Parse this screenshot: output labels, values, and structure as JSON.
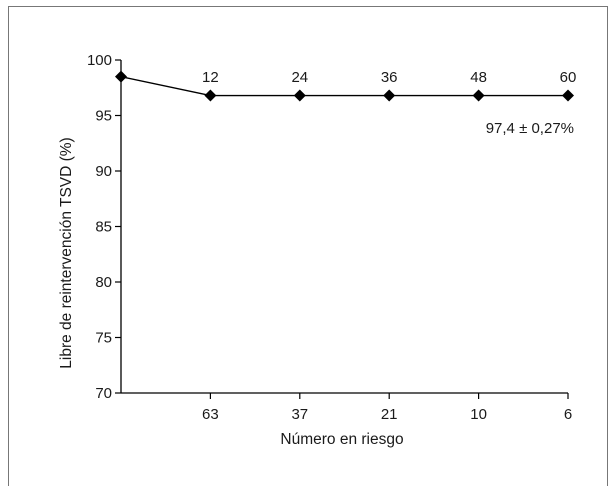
{
  "chart_data": {
    "type": "line",
    "title": "",
    "ylabel": "Libre de reintervención TSVD (%)",
    "xlabel": "Número en riesgo",
    "ylim": [
      70,
      100
    ],
    "xlim": [
      0,
      60
    ],
    "grid": false,
    "y_ticks": [
      "70",
      "75",
      "80",
      "85",
      "90",
      "95",
      "100"
    ],
    "x_top_tick_labels": [
      "12",
      "24",
      "36",
      "48",
      "60"
    ],
    "x_bottom_tick_labels": [
      "63",
      "37",
      "21",
      "10",
      "6"
    ],
    "series": [
      {
        "points": [
          {
            "x": 0,
            "y": 98.5
          },
          {
            "x": 12,
            "y": 96.8
          },
          {
            "x": 24,
            "y": 96.8
          },
          {
            "x": 36,
            "y": 96.8
          },
          {
            "x": 48,
            "y": 96.8
          },
          {
            "x": 60,
            "y": 96.8
          }
        ],
        "marker": "diamond",
        "color": "#000000"
      }
    ],
    "annotations": [
      {
        "text": "97,4 ± 0,27%"
      }
    ]
  }
}
